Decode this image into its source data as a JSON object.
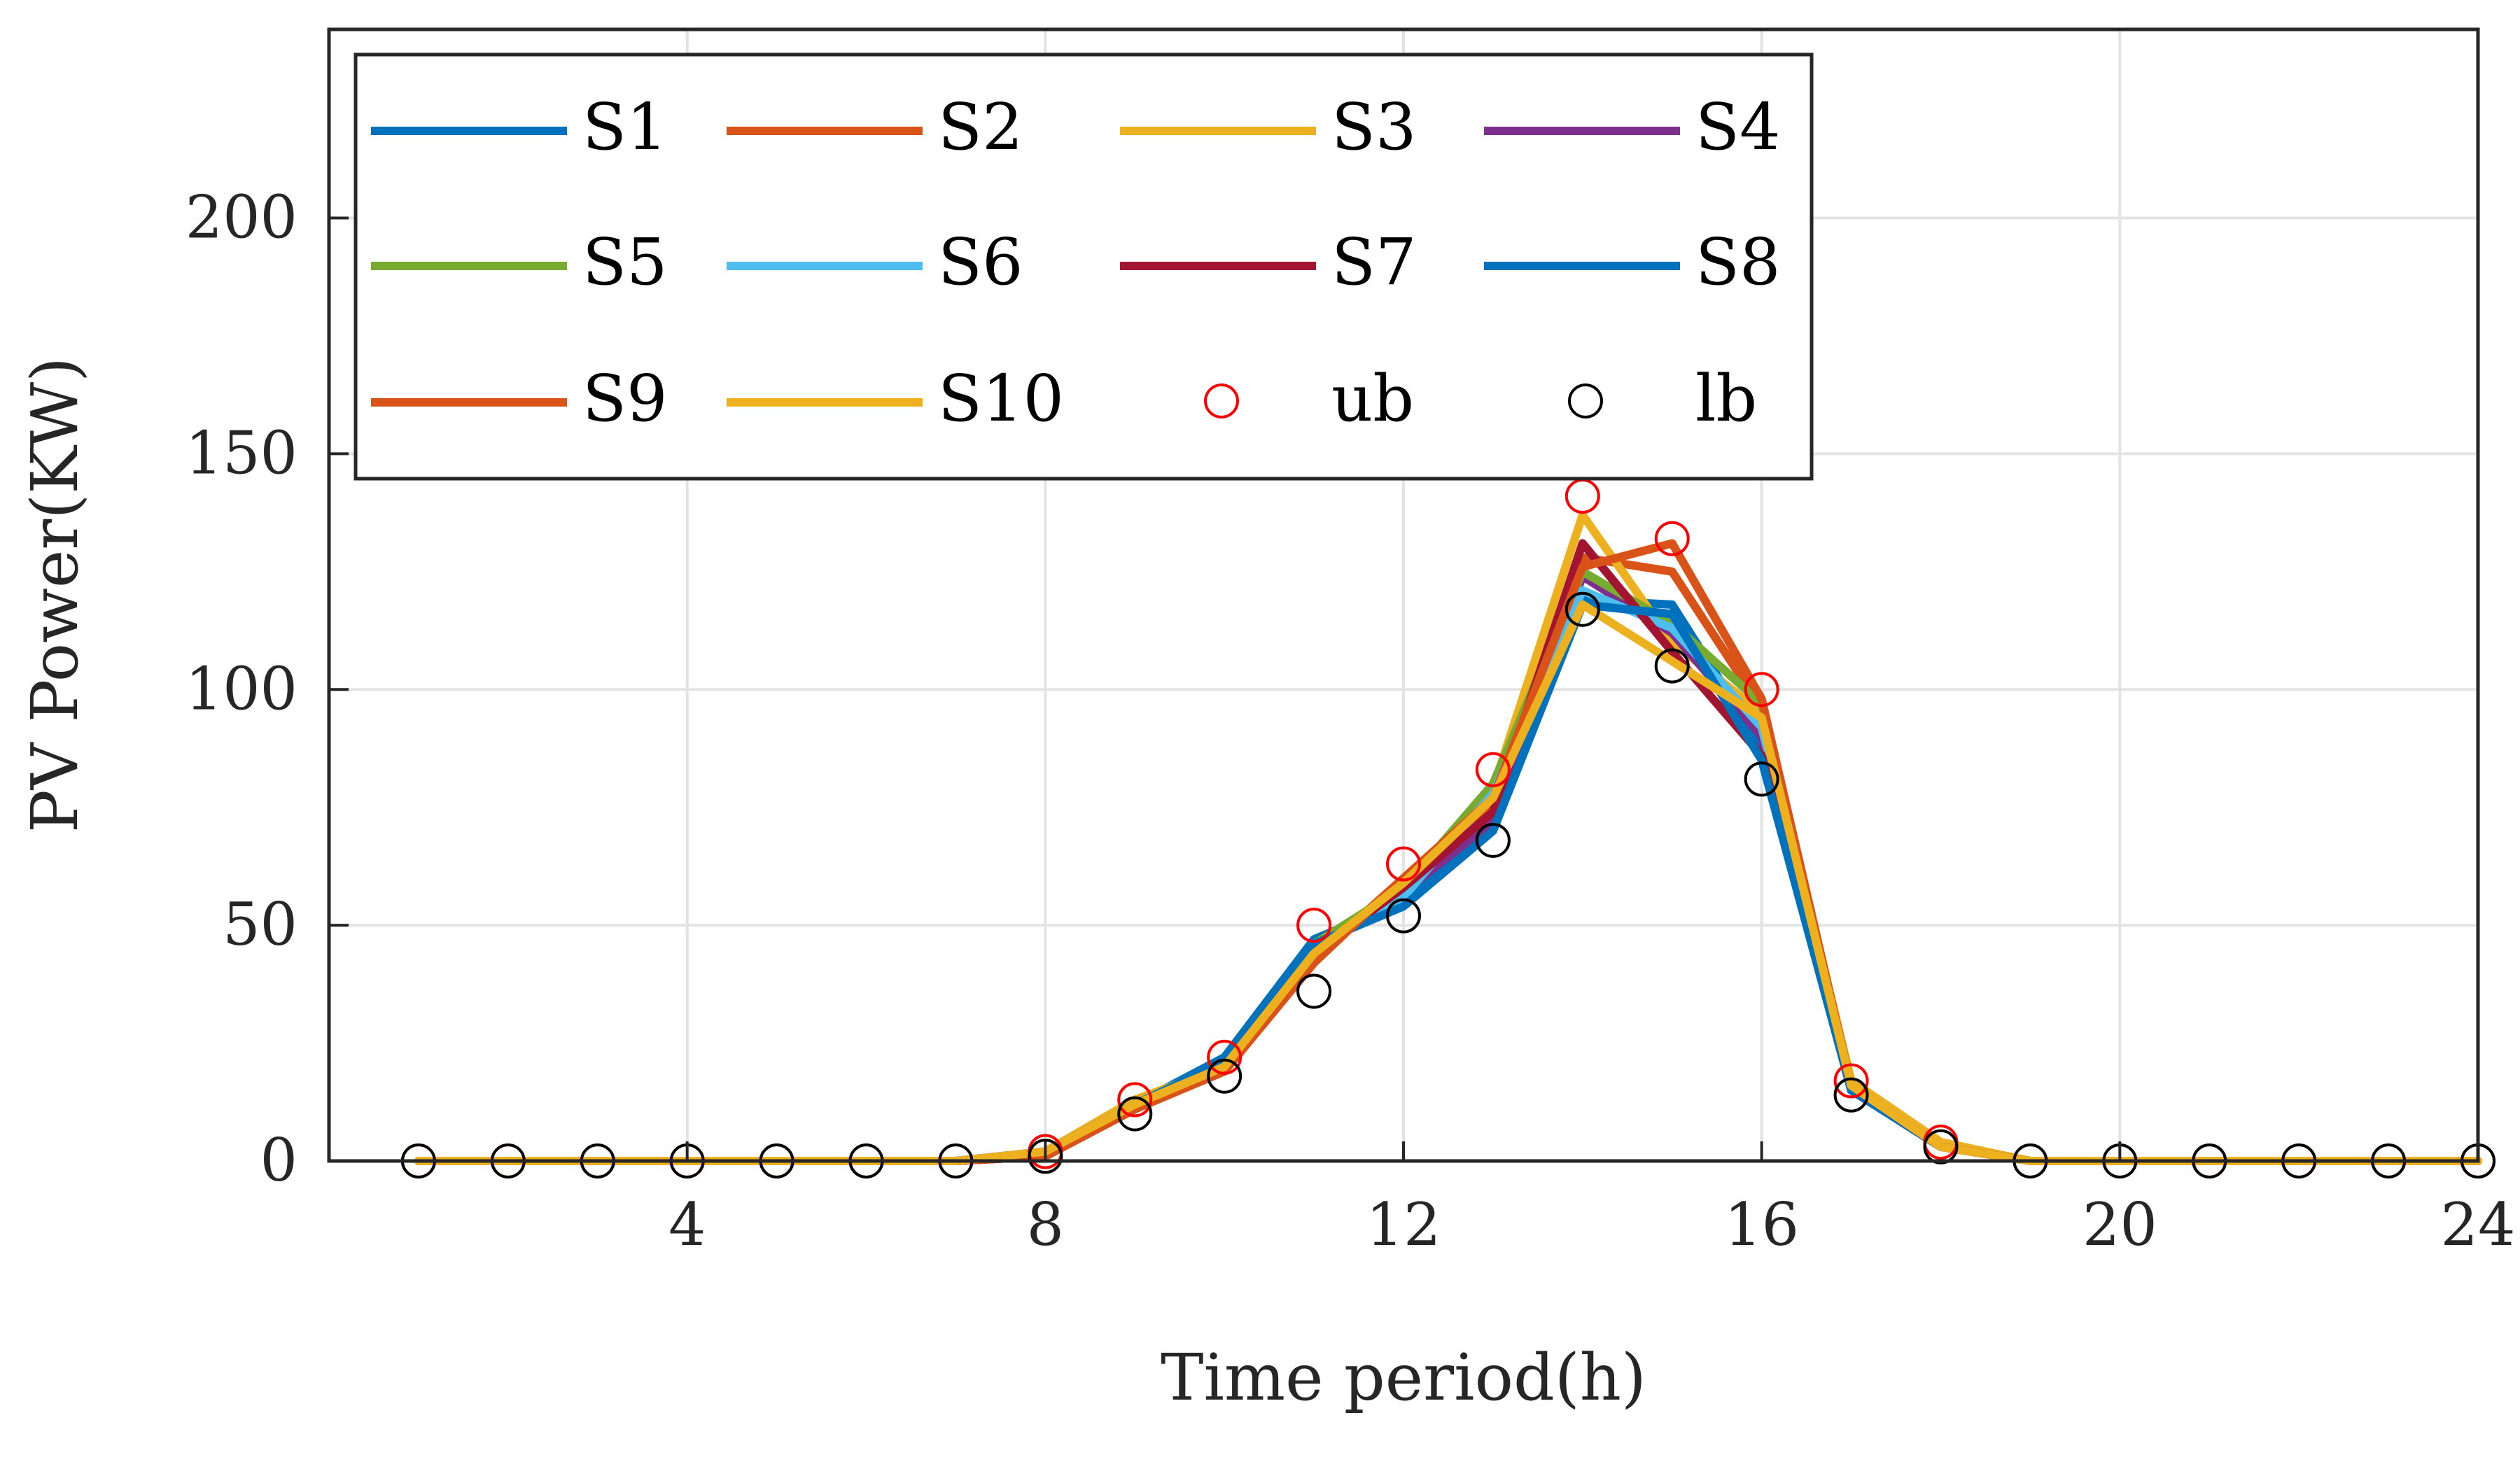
{
  "chart_data": {
    "type": "line",
    "title": "",
    "xlabel": "Time period(h)",
    "ylabel": "PV Power(KW)",
    "xlim": [
      0,
      24
    ],
    "ylim": [
      0,
      240
    ],
    "xticks": [
      4,
      8,
      12,
      16,
      20,
      24
    ],
    "yticks": [
      0,
      50,
      100,
      150,
      200
    ],
    "grid": true,
    "legend": "top-left",
    "x": [
      1,
      2,
      3,
      4,
      5,
      6,
      7,
      8,
      9,
      10,
      11,
      12,
      13,
      14,
      15,
      16,
      17,
      18,
      19,
      20,
      21,
      22,
      23,
      24
    ],
    "series": [
      {
        "name": "S1",
        "color": "#0072BD",
        "values": [
          0,
          0,
          0,
          0,
          0,
          0,
          0,
          2,
          12,
          22,
          47,
          55,
          72,
          119,
          118,
          88,
          15,
          3,
          0,
          0,
          0,
          0,
          0,
          0
        ]
      },
      {
        "name": "S2",
        "color": "#D95319",
        "values": [
          0,
          0,
          0,
          0,
          0,
          0,
          0,
          1,
          11,
          19,
          43,
          60,
          76,
          128,
          125,
          96,
          16,
          3,
          0,
          0,
          0,
          0,
          0,
          0
        ]
      },
      {
        "name": "S3",
        "color": "#EDB120",
        "values": [
          0,
          0,
          0,
          0,
          0,
          0,
          0,
          2,
          13,
          20,
          45,
          58,
          79,
          137,
          110,
          95,
          17,
          4,
          0,
          0,
          0,
          0,
          0,
          0
        ]
      },
      {
        "name": "S4",
        "color": "#7E2F8E",
        "values": [
          0,
          0,
          0,
          0,
          0,
          0,
          0,
          1,
          11,
          20,
          44,
          57,
          72,
          124,
          112,
          90,
          15,
          3,
          0,
          0,
          0,
          0,
          0,
          0
        ]
      },
      {
        "name": "S5",
        "color": "#77AC30",
        "values": [
          0,
          0,
          0,
          0,
          0,
          0,
          0,
          2,
          12,
          21,
          46,
          58,
          80,
          125,
          114,
          97,
          16,
          3,
          0,
          0,
          0,
          0,
          0,
          0
        ]
      },
      {
        "name": "S6",
        "color": "#4DBEEE",
        "values": [
          0,
          0,
          0,
          0,
          0,
          0,
          0,
          2,
          12,
          21,
          45,
          56,
          78,
          121,
          113,
          92,
          16,
          3,
          0,
          0,
          0,
          0,
          0,
          0
        ]
      },
      {
        "name": "S7",
        "color": "#A2142F",
        "values": [
          0,
          0,
          0,
          0,
          0,
          0,
          0,
          1,
          11,
          20,
          44,
          58,
          74,
          131,
          108,
          86,
          15,
          3,
          0,
          0,
          0,
          0,
          0,
          0
        ]
      },
      {
        "name": "S8",
        "color": "#0072BD",
        "values": [
          0,
          0,
          0,
          0,
          0,
          0,
          0,
          2,
          12,
          21,
          46,
          54,
          70,
          118,
          116,
          85,
          15,
          3,
          0,
          0,
          0,
          0,
          0,
          0
        ]
      },
      {
        "name": "S9",
        "color": "#D95319",
        "values": [
          0,
          0,
          0,
          0,
          0,
          0,
          0,
          1,
          11,
          19,
          42,
          60,
          77,
          126,
          131,
          98,
          16,
          3,
          0,
          0,
          0,
          0,
          0,
          0
        ]
      },
      {
        "name": "S10",
        "color": "#EDB120",
        "values": [
          0,
          0,
          0,
          0,
          0,
          0,
          0,
          2,
          12,
          20,
          44,
          59,
          77,
          118,
          106,
          94,
          16,
          3,
          0,
          0,
          0,
          0,
          0,
          0
        ]
      }
    ],
    "markers": [
      {
        "name": "ub",
        "color": "#FF0000",
        "values": [
          0,
          0,
          0,
          0,
          0,
          0,
          0,
          2,
          13,
          22,
          50,
          63,
          83,
          141,
          132,
          100,
          17,
          4,
          0,
          0,
          0,
          0,
          0,
          0
        ]
      },
      {
        "name": "lb",
        "color": "#000000",
        "values": [
          0,
          0,
          0,
          0,
          0,
          0,
          0,
          1,
          10,
          18,
          36,
          52,
          68,
          117,
          105,
          81,
          14,
          3,
          0,
          0,
          0,
          0,
          0,
          0
        ]
      }
    ]
  }
}
